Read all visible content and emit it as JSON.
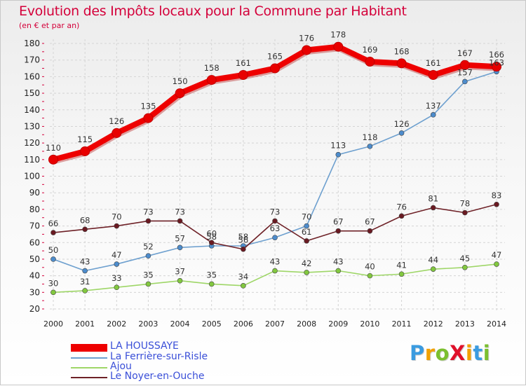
{
  "title": "Evolution des Impôts locaux pour la Commune par Habitant",
  "subtitle": "(en € et par an)",
  "logo": {
    "text": "ProXiti",
    "letters": [
      "P",
      "r",
      "o",
      "X",
      "i",
      "t",
      "i"
    ]
  },
  "colors": {
    "title": "#d4003a",
    "legend_text": "#3a4fd8",
    "grid": "#d4d4d4",
    "axis_ticks": "#d4003a"
  },
  "chart_data": {
    "type": "line",
    "title": "Evolution des Impôts locaux pour la Commune par Habitant",
    "ylabel": "(en € et par an)",
    "xlabel": "",
    "ylim": [
      20,
      180
    ],
    "yticks": [
      20,
      30,
      40,
      50,
      60,
      70,
      80,
      90,
      100,
      110,
      120,
      130,
      140,
      150,
      160,
      170,
      180
    ],
    "grid": true,
    "legend_position": "bottom-left",
    "x": [
      "2000",
      "2001",
      "2002",
      "2003",
      "2004",
      "2005",
      "2006",
      "2007",
      "2008",
      "2009",
      "2010",
      "2011",
      "2012",
      "2013",
      "2014"
    ],
    "series": [
      {
        "name": "LA HOUSSAYE",
        "color": "#ee0000",
        "point": "#e80000",
        "thick": true,
        "values": [
          110,
          115,
          126,
          135,
          150,
          158,
          161,
          165,
          176,
          178,
          169,
          168,
          161,
          167,
          166
        ]
      },
      {
        "name": "La Ferrière-sur-Risle",
        "color": "#6ea0cf",
        "point": "#4d8ccc",
        "thick": false,
        "values": [
          50,
          43,
          47,
          52,
          57,
          58,
          58,
          63,
          70,
          113,
          118,
          126,
          137,
          157,
          163
        ]
      },
      {
        "name": "Ajou",
        "color": "#9ed667",
        "point": "#82c83f",
        "thick": false,
        "values": [
          30,
          31,
          33,
          35,
          37,
          35,
          34,
          43,
          42,
          43,
          40,
          41,
          44,
          45,
          47
        ]
      },
      {
        "name": "Le Noyer-en-Ouche",
        "color": "#6e2127",
        "point": "#6a1a22",
        "thick": false,
        "values": [
          66,
          68,
          70,
          73,
          73,
          60,
          56,
          73,
          61,
          67,
          67,
          76,
          81,
          78,
          83
        ]
      }
    ]
  }
}
